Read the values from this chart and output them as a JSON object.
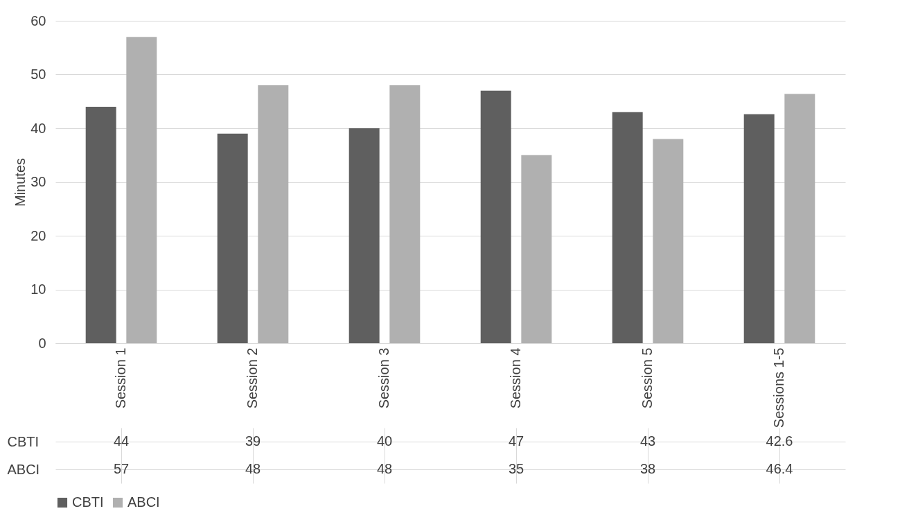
{
  "chart_data": {
    "type": "bar",
    "ylabel": "Minutes",
    "categories": [
      "Session 1",
      "Session 2",
      "Session 3",
      "Session 4",
      "Session 5",
      "Sessions 1-5"
    ],
    "series": [
      {
        "name": "CBTI",
        "color": "#5f5f5f",
        "values": [
          44,
          39,
          40,
          47,
          43,
          42.6
        ]
      },
      {
        "name": "ABCI",
        "color": "#b0b0b0",
        "values": [
          57,
          48,
          48,
          35,
          38,
          46.4
        ]
      }
    ],
    "ylim": [
      0,
      60
    ],
    "yticks": [
      0,
      10,
      20,
      30,
      40,
      50,
      60
    ],
    "grid": "y",
    "legend": "bottom",
    "data_labels": true
  }
}
